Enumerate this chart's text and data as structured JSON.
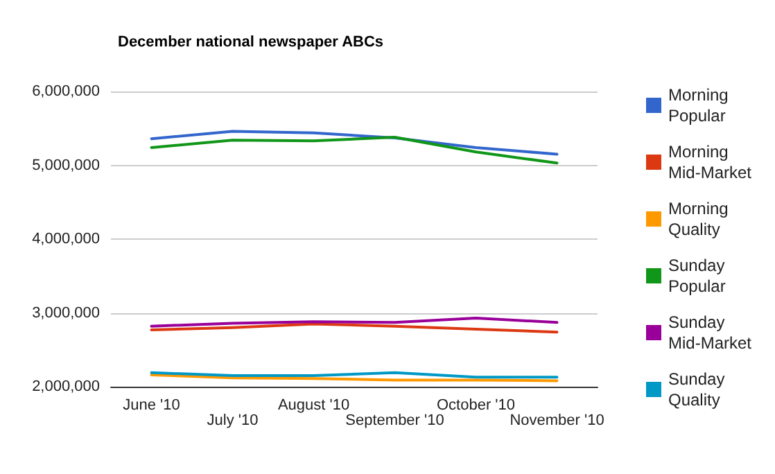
{
  "chart_data": {
    "type": "line",
    "title": "December national newspaper ABCs",
    "categories": [
      "June '10",
      "July '10",
      "August '10",
      "September '10",
      "October '10",
      "November '10"
    ],
    "series": [
      {
        "name": "Morning Popular",
        "color": "#3366cc",
        "values": [
          5360000,
          5460000,
          5440000,
          5370000,
          5240000,
          5150000
        ]
      },
      {
        "name": "Morning Mid-Market",
        "color": "#dc3912",
        "values": [
          2770000,
          2800000,
          2850000,
          2820000,
          2780000,
          2740000
        ]
      },
      {
        "name": "Morning Quality",
        "color": "#ff9900",
        "values": [
          2160000,
          2120000,
          2110000,
          2090000,
          2090000,
          2080000
        ]
      },
      {
        "name": "Sunday Popular",
        "color": "#109618",
        "values": [
          5240000,
          5340000,
          5330000,
          5380000,
          5180000,
          5030000
        ]
      },
      {
        "name": "Sunday Mid-Market",
        "color": "#990099",
        "values": [
          2820000,
          2860000,
          2880000,
          2870000,
          2930000,
          2870000
        ]
      },
      {
        "name": "Sunday Quality",
        "color": "#0099c6",
        "values": [
          2190000,
          2150000,
          2150000,
          2190000,
          2130000,
          2130000
        ]
      }
    ],
    "ylim": [
      2000000,
      6000000
    ],
    "yticks": [
      {
        "value": 2000000,
        "label": "2,000,000"
      },
      {
        "value": 3000000,
        "label": "3,000,000"
      },
      {
        "value": 4000000,
        "label": "4,000,000"
      },
      {
        "value": 5000000,
        "label": "5,000,000"
      },
      {
        "value": 6000000,
        "label": "6,000,000"
      }
    ],
    "grid": "y",
    "legend": "right",
    "marker": "none",
    "line_style": "solid"
  }
}
